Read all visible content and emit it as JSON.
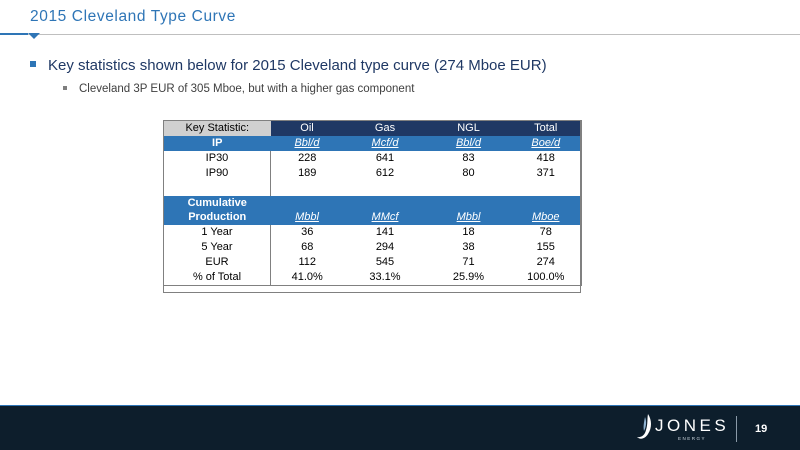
{
  "slide": {
    "title": "2015 Cleveland Type Curve",
    "bullet1": "Key statistics shown below for 2015 Cleveland type curve (274 Mboe EUR)",
    "bullet2": "Cleveland 3P EUR of 305 Mboe, but with a higher gas component",
    "page_number": "19"
  },
  "table": {
    "headers": [
      "Key Statistic:",
      "Oil",
      "Gas",
      "NGL",
      "Total"
    ],
    "ip_row": {
      "label": "IP",
      "units": [
        "Bbl/d",
        "Mcf/d",
        "Bbl/d",
        "Boe/d"
      ]
    },
    "ip_data": [
      [
        "IP30",
        "228",
        "641",
        "83",
        "418"
      ],
      [
        "IP90",
        "189",
        "612",
        "80",
        "371"
      ]
    ],
    "cum_row": {
      "label_line1": "Cumulative",
      "label_line2": "Production",
      "units": [
        "Mbbl",
        "MMcf",
        "Mbbl",
        "Mboe"
      ]
    },
    "cum_data": [
      [
        "1 Year",
        "36",
        "141",
        "18",
        "78"
      ],
      [
        "5 Year",
        "68",
        "294",
        "38",
        "155"
      ],
      [
        "EUR",
        "112",
        "545",
        "71",
        "274"
      ],
      [
        "% of Total",
        "41.0%",
        "33.1%",
        "25.9%",
        "100.0%"
      ]
    ]
  },
  "logo": {
    "word": "JONES",
    "sub": "ENERGY"
  },
  "colors": {
    "accent_blue": "#2e75b6",
    "navy": "#1f3864",
    "footer": "#0d1e2c"
  }
}
